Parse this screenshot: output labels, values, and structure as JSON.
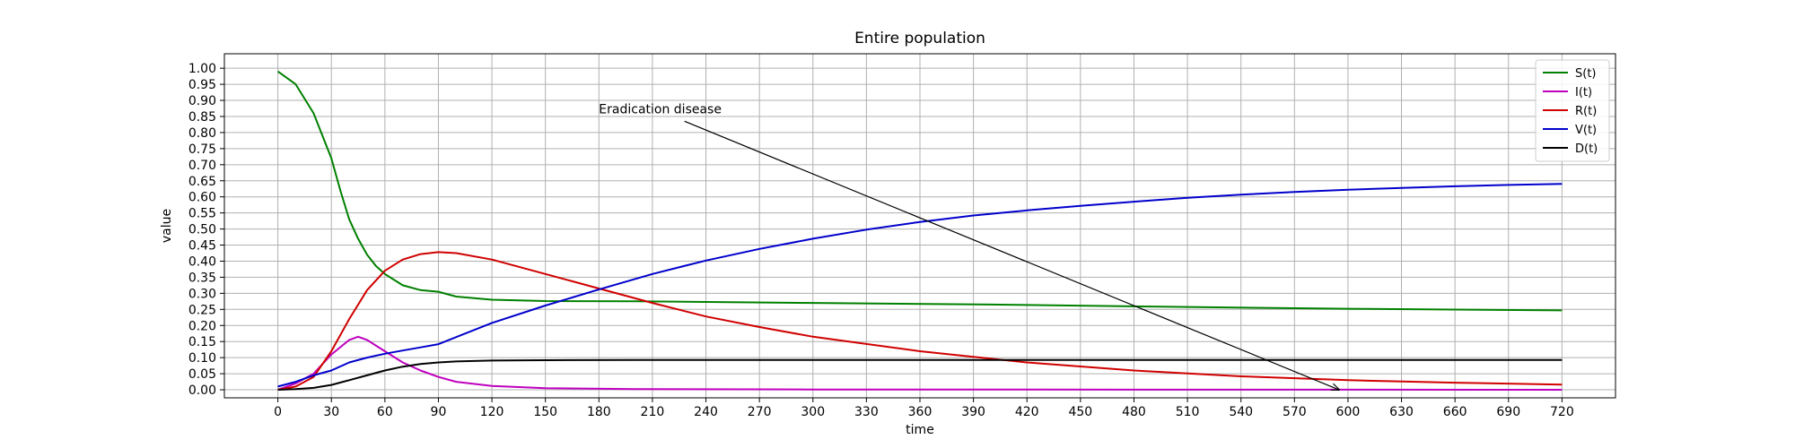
{
  "chart_data": {
    "type": "line",
    "title": "Entire population",
    "xlabel": "time",
    "ylabel": "value",
    "xlim": [
      -30,
      750
    ],
    "ylim": [
      -0.025,
      1.045
    ],
    "xticks": [
      0,
      30,
      60,
      90,
      120,
      150,
      180,
      210,
      240,
      270,
      300,
      330,
      360,
      390,
      420,
      450,
      480,
      510,
      540,
      570,
      600,
      630,
      660,
      690,
      720
    ],
    "yticks": [
      0.0,
      0.05,
      0.1,
      0.15,
      0.2,
      0.25,
      0.3,
      0.35,
      0.4,
      0.45,
      0.5,
      0.55,
      0.6,
      0.65,
      0.7,
      0.75,
      0.8,
      0.85,
      0.9,
      0.95,
      1.0
    ],
    "grid": true,
    "legend_position": "top-right",
    "series": [
      {
        "name": "S(t)",
        "color": "#008000",
        "x": [
          0,
          10,
          20,
          25,
          30,
          35,
          40,
          45,
          50,
          55,
          60,
          70,
          80,
          90,
          100,
          120,
          150,
          200,
          300,
          400,
          500,
          600,
          720
        ],
        "y": [
          0.99,
          0.95,
          0.86,
          0.79,
          0.72,
          0.62,
          0.53,
          0.47,
          0.42,
          0.385,
          0.36,
          0.325,
          0.31,
          0.305,
          0.29,
          0.28,
          0.276,
          0.275,
          0.27,
          0.265,
          0.258,
          0.252,
          0.247
        ]
      },
      {
        "name": "I(t)",
        "color": "#bf00bf",
        "x": [
          0,
          10,
          20,
          30,
          40,
          45,
          50,
          60,
          70,
          80,
          90,
          100,
          120,
          150,
          200,
          300,
          720
        ],
        "y": [
          0.0,
          0.02,
          0.05,
          0.11,
          0.155,
          0.165,
          0.155,
          0.12,
          0.085,
          0.06,
          0.04,
          0.025,
          0.012,
          0.005,
          0.002,
          0.001,
          0.0
        ]
      },
      {
        "name": "R(t)",
        "color": "#d00000",
        "x": [
          0,
          10,
          20,
          30,
          40,
          50,
          60,
          70,
          80,
          90,
          100,
          120,
          150,
          180,
          210,
          240,
          270,
          300,
          360,
          420,
          480,
          540,
          600,
          660,
          720
        ],
        "y": [
          0.0,
          0.01,
          0.04,
          0.12,
          0.22,
          0.31,
          0.37,
          0.405,
          0.422,
          0.428,
          0.425,
          0.405,
          0.36,
          0.315,
          0.27,
          0.228,
          0.195,
          0.165,
          0.12,
          0.085,
          0.06,
          0.042,
          0.03,
          0.022,
          0.016
        ]
      },
      {
        "name": "V(t)",
        "color": "#0000cc",
        "x": [
          0,
          10,
          20,
          30,
          40,
          50,
          60,
          70,
          80,
          90,
          120,
          150,
          180,
          210,
          240,
          270,
          300,
          330,
          360,
          390,
          420,
          450,
          480,
          510,
          540,
          570,
          600,
          630,
          660,
          690,
          720
        ],
        "y": [
          0.01,
          0.025,
          0.045,
          0.06,
          0.085,
          0.1,
          0.112,
          0.122,
          0.132,
          0.142,
          0.208,
          0.262,
          0.312,
          0.36,
          0.402,
          0.438,
          0.47,
          0.498,
          0.522,
          0.542,
          0.558,
          0.572,
          0.585,
          0.597,
          0.607,
          0.615,
          0.622,
          0.628,
          0.633,
          0.637,
          0.64
        ]
      },
      {
        "name": "D(t)",
        "color": "#000000",
        "x": [
          0,
          10,
          20,
          30,
          40,
          50,
          60,
          70,
          80,
          90,
          100,
          120,
          150,
          200,
          300,
          720
        ],
        "y": [
          0.0,
          0.002,
          0.006,
          0.015,
          0.03,
          0.045,
          0.06,
          0.072,
          0.08,
          0.085,
          0.088,
          0.091,
          0.092,
          0.093,
          0.093,
          0.093
        ]
      }
    ],
    "annotations": [
      {
        "text": "Eradication disease",
        "text_xy": [
          180,
          0.86
        ],
        "arrow_from": [
          228,
          0.835
        ],
        "arrow_to": [
          595,
          0.0
        ]
      }
    ]
  }
}
